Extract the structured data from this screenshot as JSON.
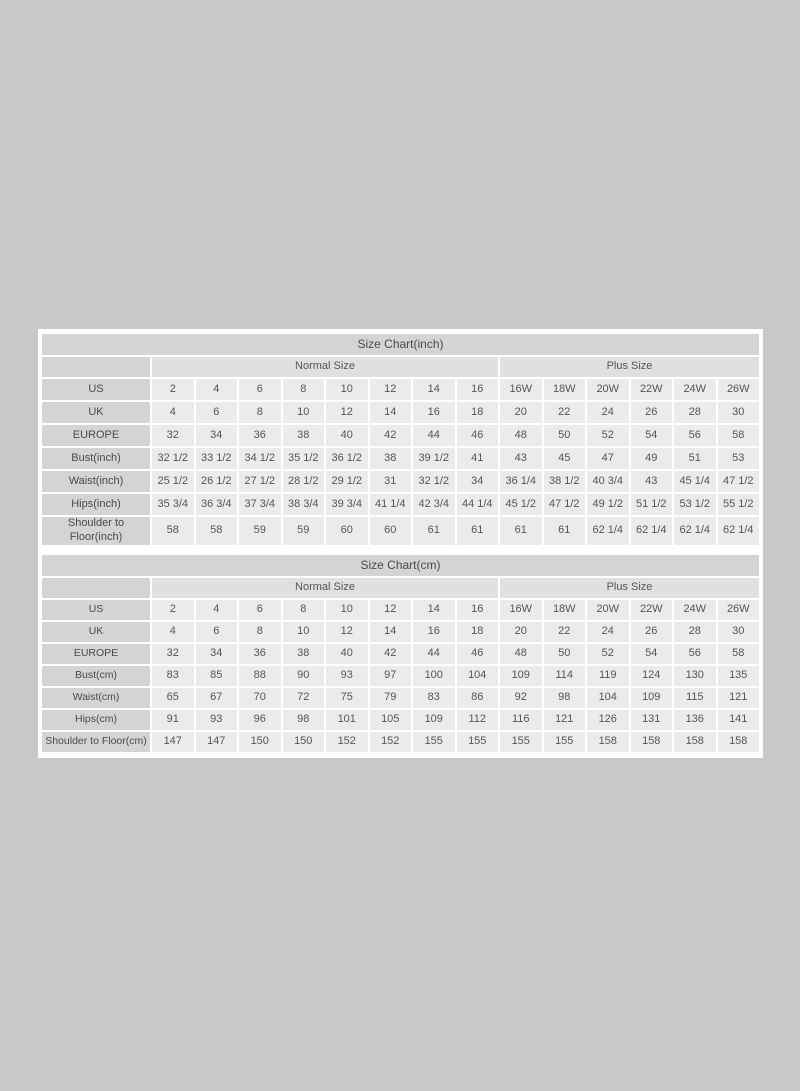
{
  "colors": {
    "page_background": "#c8c8c8",
    "panel_background": "#ffffff",
    "title_bg": "#d4d4d4",
    "label_bg": "#d4d4d4",
    "group_header_bg": "#e0e0e0",
    "cell_bg": "#ebebeb",
    "text": "#555555"
  },
  "chart_data": [
    {
      "type": "table",
      "name": "size-chart-inch",
      "title": "Size Chart(inch)",
      "column_groups": [
        {
          "label": "Normal Size",
          "span": 8
        },
        {
          "label": "Plus Size",
          "span": 6
        }
      ],
      "rows": [
        {
          "label": "US",
          "values": [
            "2",
            "4",
            "6",
            "8",
            "10",
            "12",
            "14",
            "16",
            "16W",
            "18W",
            "20W",
            "22W",
            "24W",
            "26W"
          ]
        },
        {
          "label": "UK",
          "values": [
            "4",
            "6",
            "8",
            "10",
            "12",
            "14",
            "16",
            "18",
            "20",
            "22",
            "24",
            "26",
            "28",
            "30"
          ]
        },
        {
          "label": "EUROPE",
          "values": [
            "32",
            "34",
            "36",
            "38",
            "40",
            "42",
            "44",
            "46",
            "48",
            "50",
            "52",
            "54",
            "56",
            "58"
          ]
        },
        {
          "label": "Bust(inch)",
          "values": [
            "32 1/2",
            "33 1/2",
            "34 1/2",
            "35 1/2",
            "36 1/2",
            "38",
            "39 1/2",
            "41",
            "43",
            "45",
            "47",
            "49",
            "51",
            "53"
          ]
        },
        {
          "label": "Waist(inch)",
          "values": [
            "25 1/2",
            "26 1/2",
            "27 1/2",
            "28 1/2",
            "29 1/2",
            "31",
            "32 1/2",
            "34",
            "36 1/4",
            "38 1/2",
            "40 3/4",
            "43",
            "45 1/4",
            "47 1/2"
          ]
        },
        {
          "label": "Hips(inch)",
          "values": [
            "35 3/4",
            "36 3/4",
            "37 3/4",
            "38 3/4",
            "39 3/4",
            "41 1/4",
            "42 3/4",
            "44 1/4",
            "45 1/2",
            "47 1/2",
            "49 1/2",
            "51 1/2",
            "53 1/2",
            "55 1/2"
          ]
        },
        {
          "label": "Shoulder to Floor(inch)",
          "values": [
            "58",
            "58",
            "59",
            "59",
            "60",
            "60",
            "61",
            "61",
            "61",
            "61",
            "62 1/4",
            "62 1/4",
            "62 1/4",
            "62 1/4"
          ]
        }
      ]
    },
    {
      "type": "table",
      "name": "size-chart-cm",
      "title": "Size Chart(cm)",
      "column_groups": [
        {
          "label": "Normal Size",
          "span": 8
        },
        {
          "label": "Plus Size",
          "span": 6
        }
      ],
      "rows": [
        {
          "label": "US",
          "values": [
            "2",
            "4",
            "6",
            "8",
            "10",
            "12",
            "14",
            "16",
            "16W",
            "18W",
            "20W",
            "22W",
            "24W",
            "26W"
          ]
        },
        {
          "label": "UK",
          "values": [
            "4",
            "6",
            "8",
            "10",
            "12",
            "14",
            "16",
            "18",
            "20",
            "22",
            "24",
            "26",
            "28",
            "30"
          ]
        },
        {
          "label": "EUROPE",
          "values": [
            "32",
            "34",
            "36",
            "38",
            "40",
            "42",
            "44",
            "46",
            "48",
            "50",
            "52",
            "54",
            "56",
            "58"
          ]
        },
        {
          "label": "Bust(cm)",
          "values": [
            "83",
            "85",
            "88",
            "90",
            "93",
            "97",
            "100",
            "104",
            "109",
            "114",
            "119",
            "124",
            "130",
            "135"
          ]
        },
        {
          "label": "Waist(cm)",
          "values": [
            "65",
            "67",
            "70",
            "72",
            "75",
            "79",
            "83",
            "86",
            "92",
            "98",
            "104",
            "109",
            "115",
            "121"
          ]
        },
        {
          "label": "Hips(cm)",
          "values": [
            "91",
            "93",
            "96",
            "98",
            "101",
            "105",
            "109",
            "112",
            "116",
            "121",
            "126",
            "131",
            "136",
            "141"
          ]
        },
        {
          "label": "Shoulder to Floor(cm)",
          "values": [
            "147",
            "147",
            "150",
            "150",
            "152",
            "152",
            "155",
            "155",
            "155",
            "155",
            "158",
            "158",
            "158",
            "158"
          ]
        }
      ]
    }
  ]
}
